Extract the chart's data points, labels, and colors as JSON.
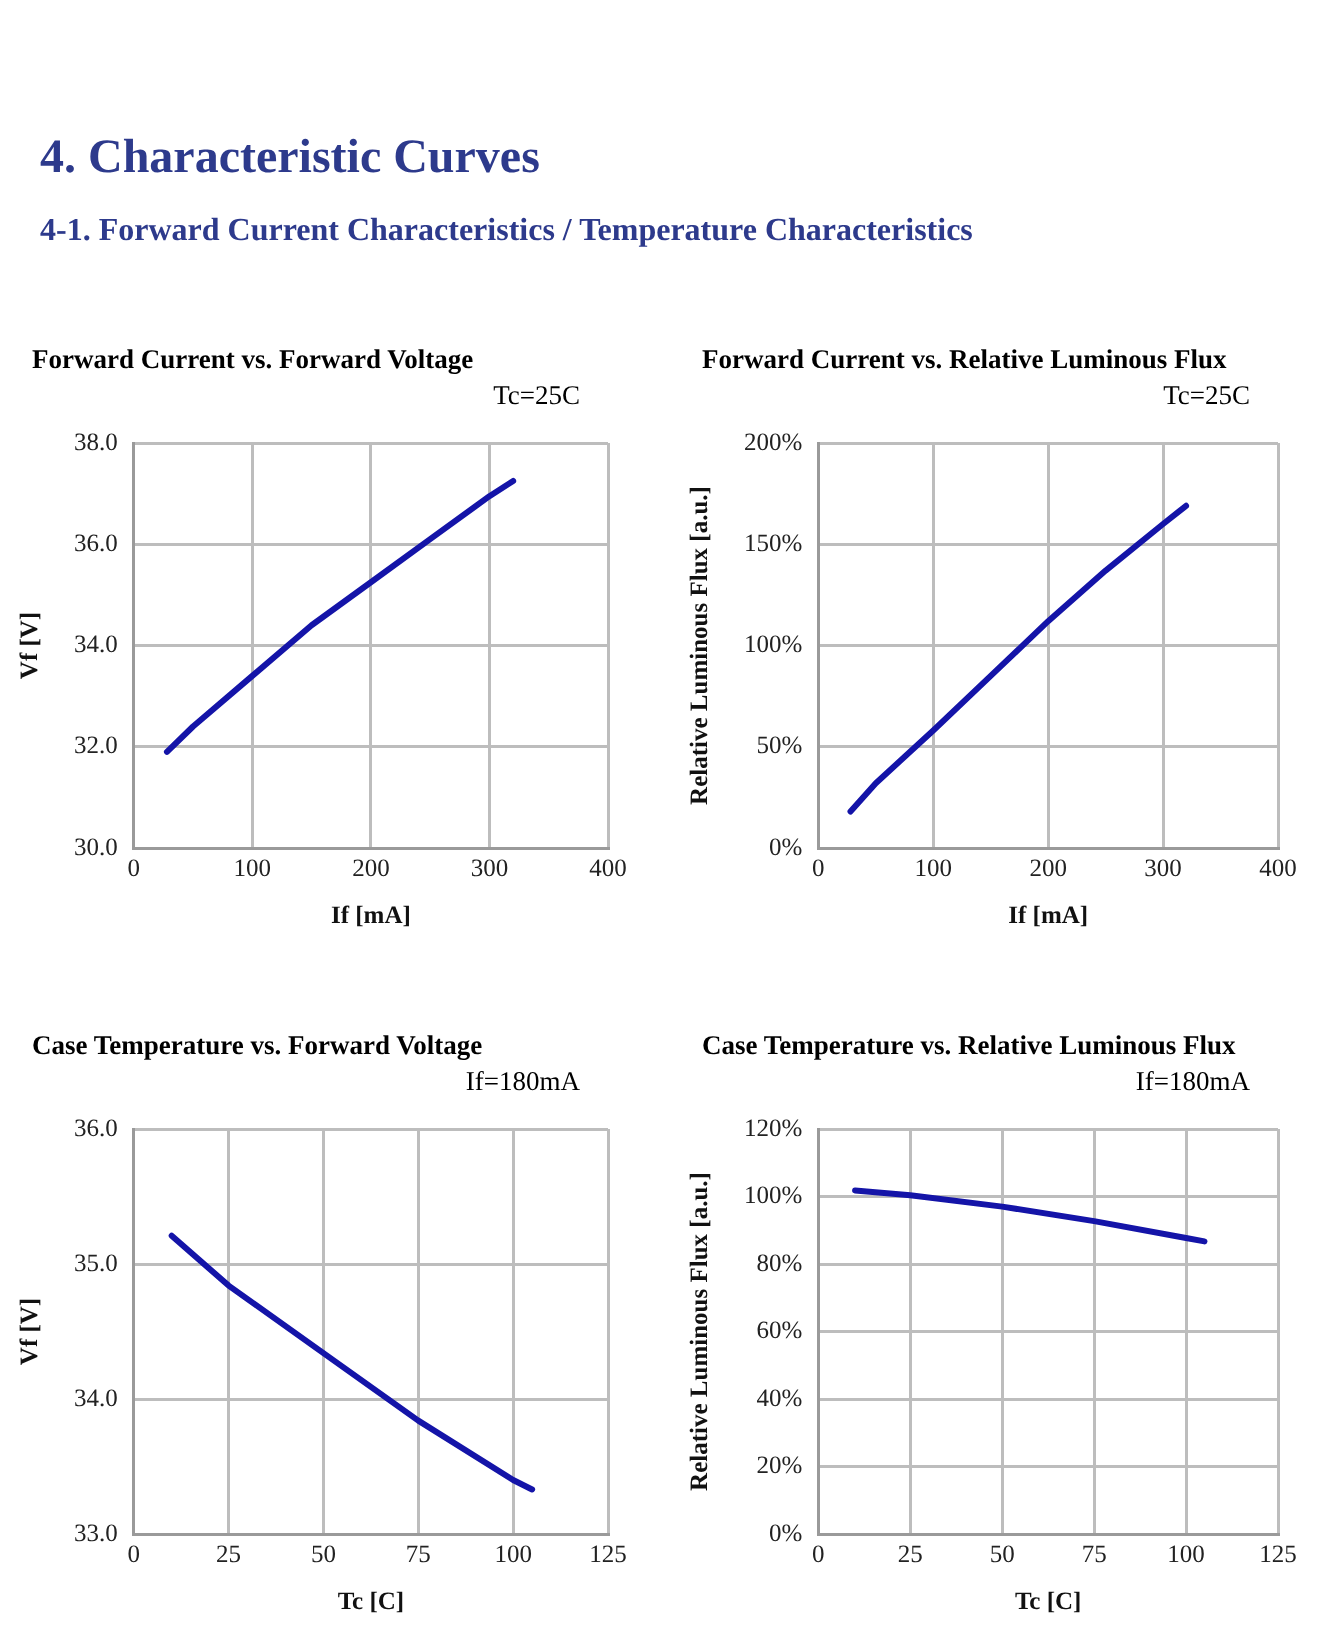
{
  "chart_data": [
    {
      "type": "line",
      "title": "Forward Current vs. Forward Voltage",
      "subtitle": "Tc=25C",
      "annotations": [
        "4. Characteristic Curves",
        "4-1. Forward Current Characteristics / Temperature Characteristics"
      ],
      "xlabel": "If [mA]",
      "ylabel": "Vf [V]",
      "xlim": [
        0,
        400
      ],
      "xticks": [
        0,
        100,
        200,
        300,
        400
      ],
      "ylim": [
        30,
        38
      ],
      "yticks": [
        {
          "value": 30,
          "label": "30.0"
        },
        {
          "value": 32,
          "label": "32.0"
        },
        {
          "value": 34,
          "label": "34.0"
        },
        {
          "value": 36,
          "label": "36.0"
        },
        {
          "value": 38,
          "label": "38.0"
        }
      ],
      "grid": true,
      "legend": false,
      "series": [
        {
          "color": "#1414a8",
          "x": [
            28,
            50,
            100,
            150,
            200,
            250,
            300,
            320
          ],
          "values": [
            31.9,
            32.4,
            33.4,
            34.4,
            35.25,
            36.1,
            36.95,
            37.25
          ]
        }
      ]
    },
    {
      "type": "line",
      "title": "Forward Current vs. Relative Luminous Flux",
      "subtitle": "Tc=25C",
      "xlabel": "If [mA]",
      "ylabel": "Relative Luminous Flux [a.u.]",
      "xlim": [
        0,
        400
      ],
      "xticks": [
        0,
        100,
        200,
        300,
        400
      ],
      "ylim": [
        0,
        200
      ],
      "yticks": [
        {
          "value": 0,
          "label": "0%"
        },
        {
          "value": 50,
          "label": "50%"
        },
        {
          "value": 100,
          "label": "100%"
        },
        {
          "value": 150,
          "label": "150%"
        },
        {
          "value": 200,
          "label": "200%"
        }
      ],
      "grid": true,
      "legend": false,
      "series": [
        {
          "color": "#1414a8",
          "x": [
            28,
            50,
            100,
            150,
            200,
            250,
            300,
            320
          ],
          "values": [
            18,
            32,
            58,
            85,
            112,
            137,
            160,
            169
          ]
        }
      ]
    },
    {
      "type": "line",
      "title": "Case Temperature vs. Forward Voltage",
      "subtitle": "If=180mA",
      "xlabel": "Tc [C]",
      "ylabel": "Vf [V]",
      "xlim": [
        0,
        125
      ],
      "xticks": [
        0,
        25,
        50,
        75,
        100,
        125
      ],
      "ylim": [
        33,
        36
      ],
      "yticks": [
        {
          "value": 33,
          "label": "33.0"
        },
        {
          "value": 34,
          "label": "34.0"
        },
        {
          "value": 35,
          "label": "35.0"
        },
        {
          "value": 36,
          "label": "36.0"
        }
      ],
      "grid": true,
      "legend": false,
      "series": [
        {
          "color": "#1414a8",
          "x": [
            10,
            25,
            50,
            75,
            100,
            105
          ],
          "values": [
            35.21,
            34.84,
            34.34,
            33.84,
            33.4,
            33.33
          ]
        }
      ]
    },
    {
      "type": "line",
      "title": "Case Temperature vs. Relative Luminous Flux",
      "subtitle": "If=180mA",
      "xlabel": "Tc [C]",
      "ylabel": "Relative Luminous Flux [a.u.]",
      "xlim": [
        0,
        125
      ],
      "xticks": [
        0,
        25,
        50,
        75,
        100,
        125
      ],
      "ylim": [
        0,
        120
      ],
      "yticks": [
        {
          "value": 0,
          "label": "0%"
        },
        {
          "value": 20,
          "label": "20%"
        },
        {
          "value": 40,
          "label": "40%"
        },
        {
          "value": 60,
          "label": "60%"
        },
        {
          "value": 80,
          "label": "80%"
        },
        {
          "value": 100,
          "label": "100%"
        },
        {
          "value": 120,
          "label": "120%"
        }
      ],
      "grid": true,
      "legend": false,
      "series": [
        {
          "color": "#1414a8",
          "x": [
            10,
            25,
            50,
            75,
            100,
            105
          ],
          "values": [
            101.8,
            100.4,
            97,
            92.7,
            87.7,
            86.7
          ]
        }
      ]
    }
  ]
}
